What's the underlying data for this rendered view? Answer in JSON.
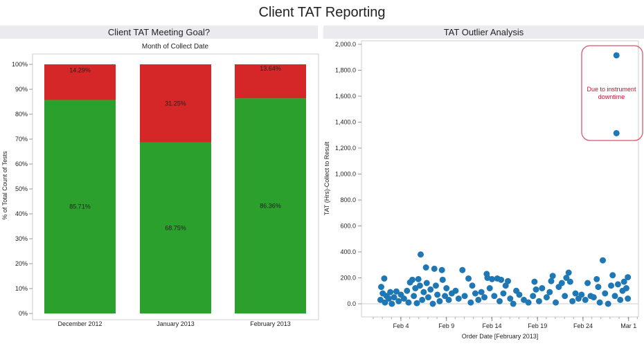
{
  "dashboard_title": "Client TAT Reporting",
  "chart_data": [
    {
      "type": "bar",
      "stacked": true,
      "title": "Client TAT Meeting Goal?",
      "column_header": "Month of Collect Date",
      "ylabel": "% of Total Count of Tests",
      "ylim": [
        0,
        100
      ],
      "yticks": [
        "0%",
        "10%",
        "20%",
        "30%",
        "40%",
        "50%",
        "60%",
        "70%",
        "80%",
        "90%",
        "100%"
      ],
      "categories": [
        "December 2012",
        "January 2013",
        "February 2013"
      ],
      "series": [
        {
          "color": "#2ca02c",
          "values": [
            85.71,
            68.75,
            86.36
          ],
          "labels": [
            "85.71%",
            "68.75%",
            "86.36%"
          ]
        },
        {
          "color": "#d62728",
          "values": [
            14.29,
            31.25,
            13.64
          ],
          "labels": [
            "14.29%",
            "31.25%",
            "13.64%"
          ]
        }
      ],
      "grid": false
    },
    {
      "type": "scatter",
      "title": "TAT Outlier Analysis",
      "xlabel": "Order Date [February 2013]",
      "ylabel": "TAT (Hrs)-Collect to Result",
      "ylim": [
        -100,
        2000
      ],
      "yticks": [
        "0.0",
        "200.0",
        "400.0",
        "600.0",
        "800.0",
        "1,000.0",
        "1,200.0",
        "1,400.0",
        "1,600.0",
        "1,800.0",
        "2,000.0"
      ],
      "xticks": [
        "Feb 4",
        "Feb 9",
        "Feb 14",
        "Feb 19",
        "Feb 24",
        "Mar 1"
      ],
      "color": "#1f77b4",
      "annotation": {
        "text": [
          "Due to instrument",
          "downtime"
        ],
        "color": "#c8102e"
      },
      "points": [
        [
          "2013-02-01T18",
          30
        ],
        [
          "2013-02-01T20",
          130
        ],
        [
          "2013-02-02T00",
          80
        ],
        [
          "2013-02-02T04",
          195
        ],
        [
          "2013-02-02T06",
          10
        ],
        [
          "2013-02-02T10",
          60
        ],
        [
          "2013-02-02T16",
          40
        ],
        [
          "2013-02-02T20",
          90
        ],
        [
          "2013-02-03T00",
          0
        ],
        [
          "2013-02-03T06",
          50
        ],
        [
          "2013-02-03T12",
          95
        ],
        [
          "2013-02-03T18",
          20
        ],
        [
          "2013-02-04T00",
          70
        ],
        [
          "2013-02-04T08",
          40
        ],
        [
          "2013-02-04T16",
          100
        ],
        [
          "2013-02-04T20",
          10
        ],
        [
          "2013-02-05T00",
          165
        ],
        [
          "2013-02-05T06",
          185
        ],
        [
          "2013-02-05T10",
          60
        ],
        [
          "2013-02-05T14",
          120
        ],
        [
          "2013-02-05T18",
          5
        ],
        [
          "2013-02-05T22",
          190
        ],
        [
          "2013-02-06T02",
          140
        ],
        [
          "2013-02-06T04",
          380
        ],
        [
          "2013-02-06T08",
          30
        ],
        [
          "2013-02-06T12",
          90
        ],
        [
          "2013-02-06T18",
          280
        ],
        [
          "2013-02-06T20",
          160
        ],
        [
          "2013-02-07T00",
          50
        ],
        [
          "2013-02-07T06",
          110
        ],
        [
          "2013-02-07T12",
          0
        ],
        [
          "2013-02-07T16",
          270
        ],
        [
          "2013-02-07T20",
          140
        ],
        [
          "2013-02-08T00",
          70
        ],
        [
          "2013-02-08T06",
          20
        ],
        [
          "2013-02-08T12",
          260
        ],
        [
          "2013-02-08T14",
          185
        ],
        [
          "2013-02-08T20",
          60
        ],
        [
          "2013-02-09T00",
          120
        ],
        [
          "2013-02-09T06",
          30
        ],
        [
          "2013-02-09T14",
          80
        ],
        [
          "2013-02-10T00",
          100
        ],
        [
          "2013-02-10T08",
          40
        ],
        [
          "2013-02-10T18",
          260
        ],
        [
          "2013-02-11T00",
          60
        ],
        [
          "2013-02-11T10",
          195
        ],
        [
          "2013-02-11T16",
          10
        ],
        [
          "2013-02-11T20",
          140
        ],
        [
          "2013-02-12T04",
          80
        ],
        [
          "2013-02-12T12",
          30
        ],
        [
          "2013-02-12T20",
          90
        ],
        [
          "2013-02-13T04",
          50
        ],
        [
          "2013-02-13T10",
          230
        ],
        [
          "2013-02-13T12",
          200
        ],
        [
          "2013-02-13T18",
          120
        ],
        [
          "2013-02-14T00",
          190
        ],
        [
          "2013-02-14T06",
          60
        ],
        [
          "2013-02-14T14",
          195
        ],
        [
          "2013-02-14T20",
          20
        ],
        [
          "2013-02-15T00",
          185
        ],
        [
          "2013-02-15T06",
          80
        ],
        [
          "2013-02-15T12",
          140
        ],
        [
          "2013-02-15T18",
          175
        ],
        [
          "2013-02-16T00",
          40
        ],
        [
          "2013-02-16T08",
          0
        ],
        [
          "2013-02-16T16",
          100
        ],
        [
          "2013-02-17T00",
          70
        ],
        [
          "2013-02-17T12",
          30
        ],
        [
          "2013-02-18T00",
          10
        ],
        [
          "2013-02-18T12",
          60
        ],
        [
          "2013-02-18T16",
          170
        ],
        [
          "2013-02-18T20",
          110
        ],
        [
          "2013-02-19T04",
          20
        ],
        [
          "2013-02-19T12",
          120
        ],
        [
          "2013-02-20T00",
          50
        ],
        [
          "2013-02-20T08",
          90
        ],
        [
          "2013-02-20T12",
          175
        ],
        [
          "2013-02-20T16",
          215
        ],
        [
          "2013-02-21T00",
          10
        ],
        [
          "2013-02-21T08",
          130
        ],
        [
          "2013-02-21T16",
          160
        ],
        [
          "2013-02-22T00",
          60
        ],
        [
          "2013-02-22T04",
          200
        ],
        [
          "2013-02-22T10",
          240
        ],
        [
          "2013-02-22T14",
          170
        ],
        [
          "2013-02-22T20",
          20
        ],
        [
          "2013-02-23T04",
          80
        ],
        [
          "2013-02-23T12",
          40
        ],
        [
          "2013-02-23T20",
          70
        ],
        [
          "2013-02-24T06",
          30
        ],
        [
          "2013-02-24T12",
          160
        ],
        [
          "2013-02-24T20",
          60
        ],
        [
          "2013-02-25T04",
          50
        ],
        [
          "2013-02-25T12",
          190
        ],
        [
          "2013-02-25T16",
          130
        ],
        [
          "2013-02-25T20",
          10
        ],
        [
          "2013-02-26T04",
          335
        ],
        [
          "2013-02-26T10",
          80
        ],
        [
          "2013-02-26T18",
          0
        ],
        [
          "2013-02-27T02",
          140
        ],
        [
          "2013-02-27T06",
          220
        ],
        [
          "2013-02-27T12",
          60
        ],
        [
          "2013-02-27T16",
          1915
        ],
        [
          "2013-02-27T16",
          1315
        ],
        [
          "2013-02-27T20",
          150
        ],
        [
          "2013-02-28T02",
          30
        ],
        [
          "2013-02-28T08",
          100
        ],
        [
          "2013-02-28T12",
          170
        ],
        [
          "2013-02-28T18",
          120
        ],
        [
          "2013-02-28T22",
          205
        ],
        [
          "2013-02-28T22",
          40
        ]
      ]
    }
  ]
}
